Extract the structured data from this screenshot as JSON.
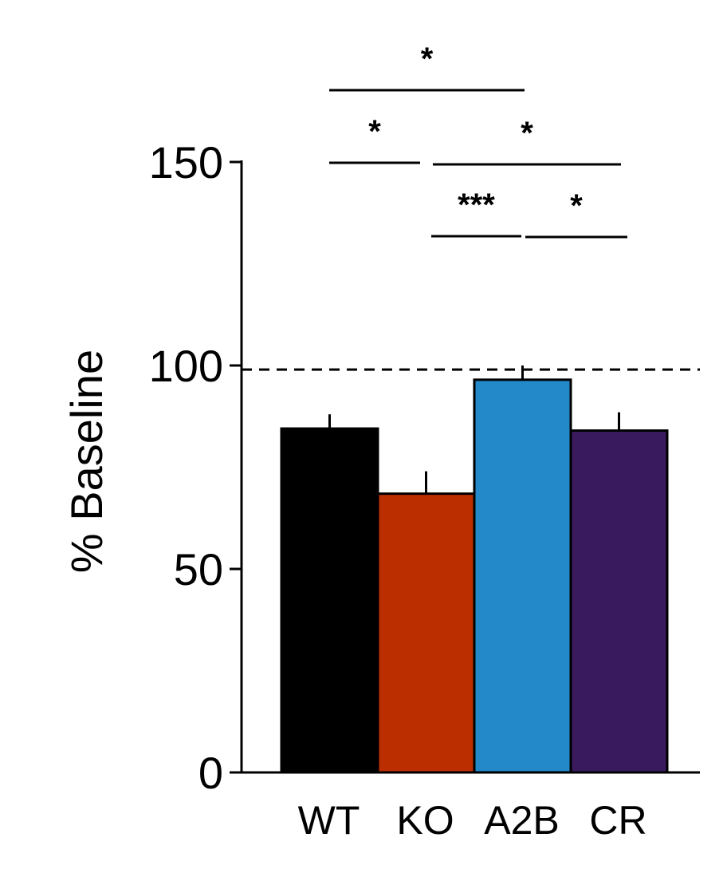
{
  "chart_data": {
    "type": "bar",
    "title": "",
    "xlabel": "",
    "ylabel": "% Baseline",
    "ylim": [
      0,
      150
    ],
    "yticks": [
      0,
      50,
      100,
      150
    ],
    "categories": [
      "WT",
      "KO",
      "A2B",
      "CR"
    ],
    "values": [
      84.5,
      68.5,
      96.5,
      84.0
    ],
    "errors": [
      3.5,
      5.5,
      3.5,
      4.5
    ],
    "bar_colors": [
      "#000000",
      "#bb2e00",
      "#2389c9",
      "#3a1a5e"
    ],
    "reference_line": {
      "y": 99,
      "style": "dashed"
    },
    "significance": [
      {
        "from": "WT",
        "to": "A2B",
        "label": "*"
      },
      {
        "from": "WT",
        "to": "KO",
        "label": "*"
      },
      {
        "from": "KO",
        "to": "CR",
        "label": "*"
      },
      {
        "from": "KO",
        "to": "A2B",
        "label": "***"
      },
      {
        "from": "A2B",
        "to": "CR",
        "label": "*"
      }
    ],
    "grid": false,
    "legend": "none"
  }
}
